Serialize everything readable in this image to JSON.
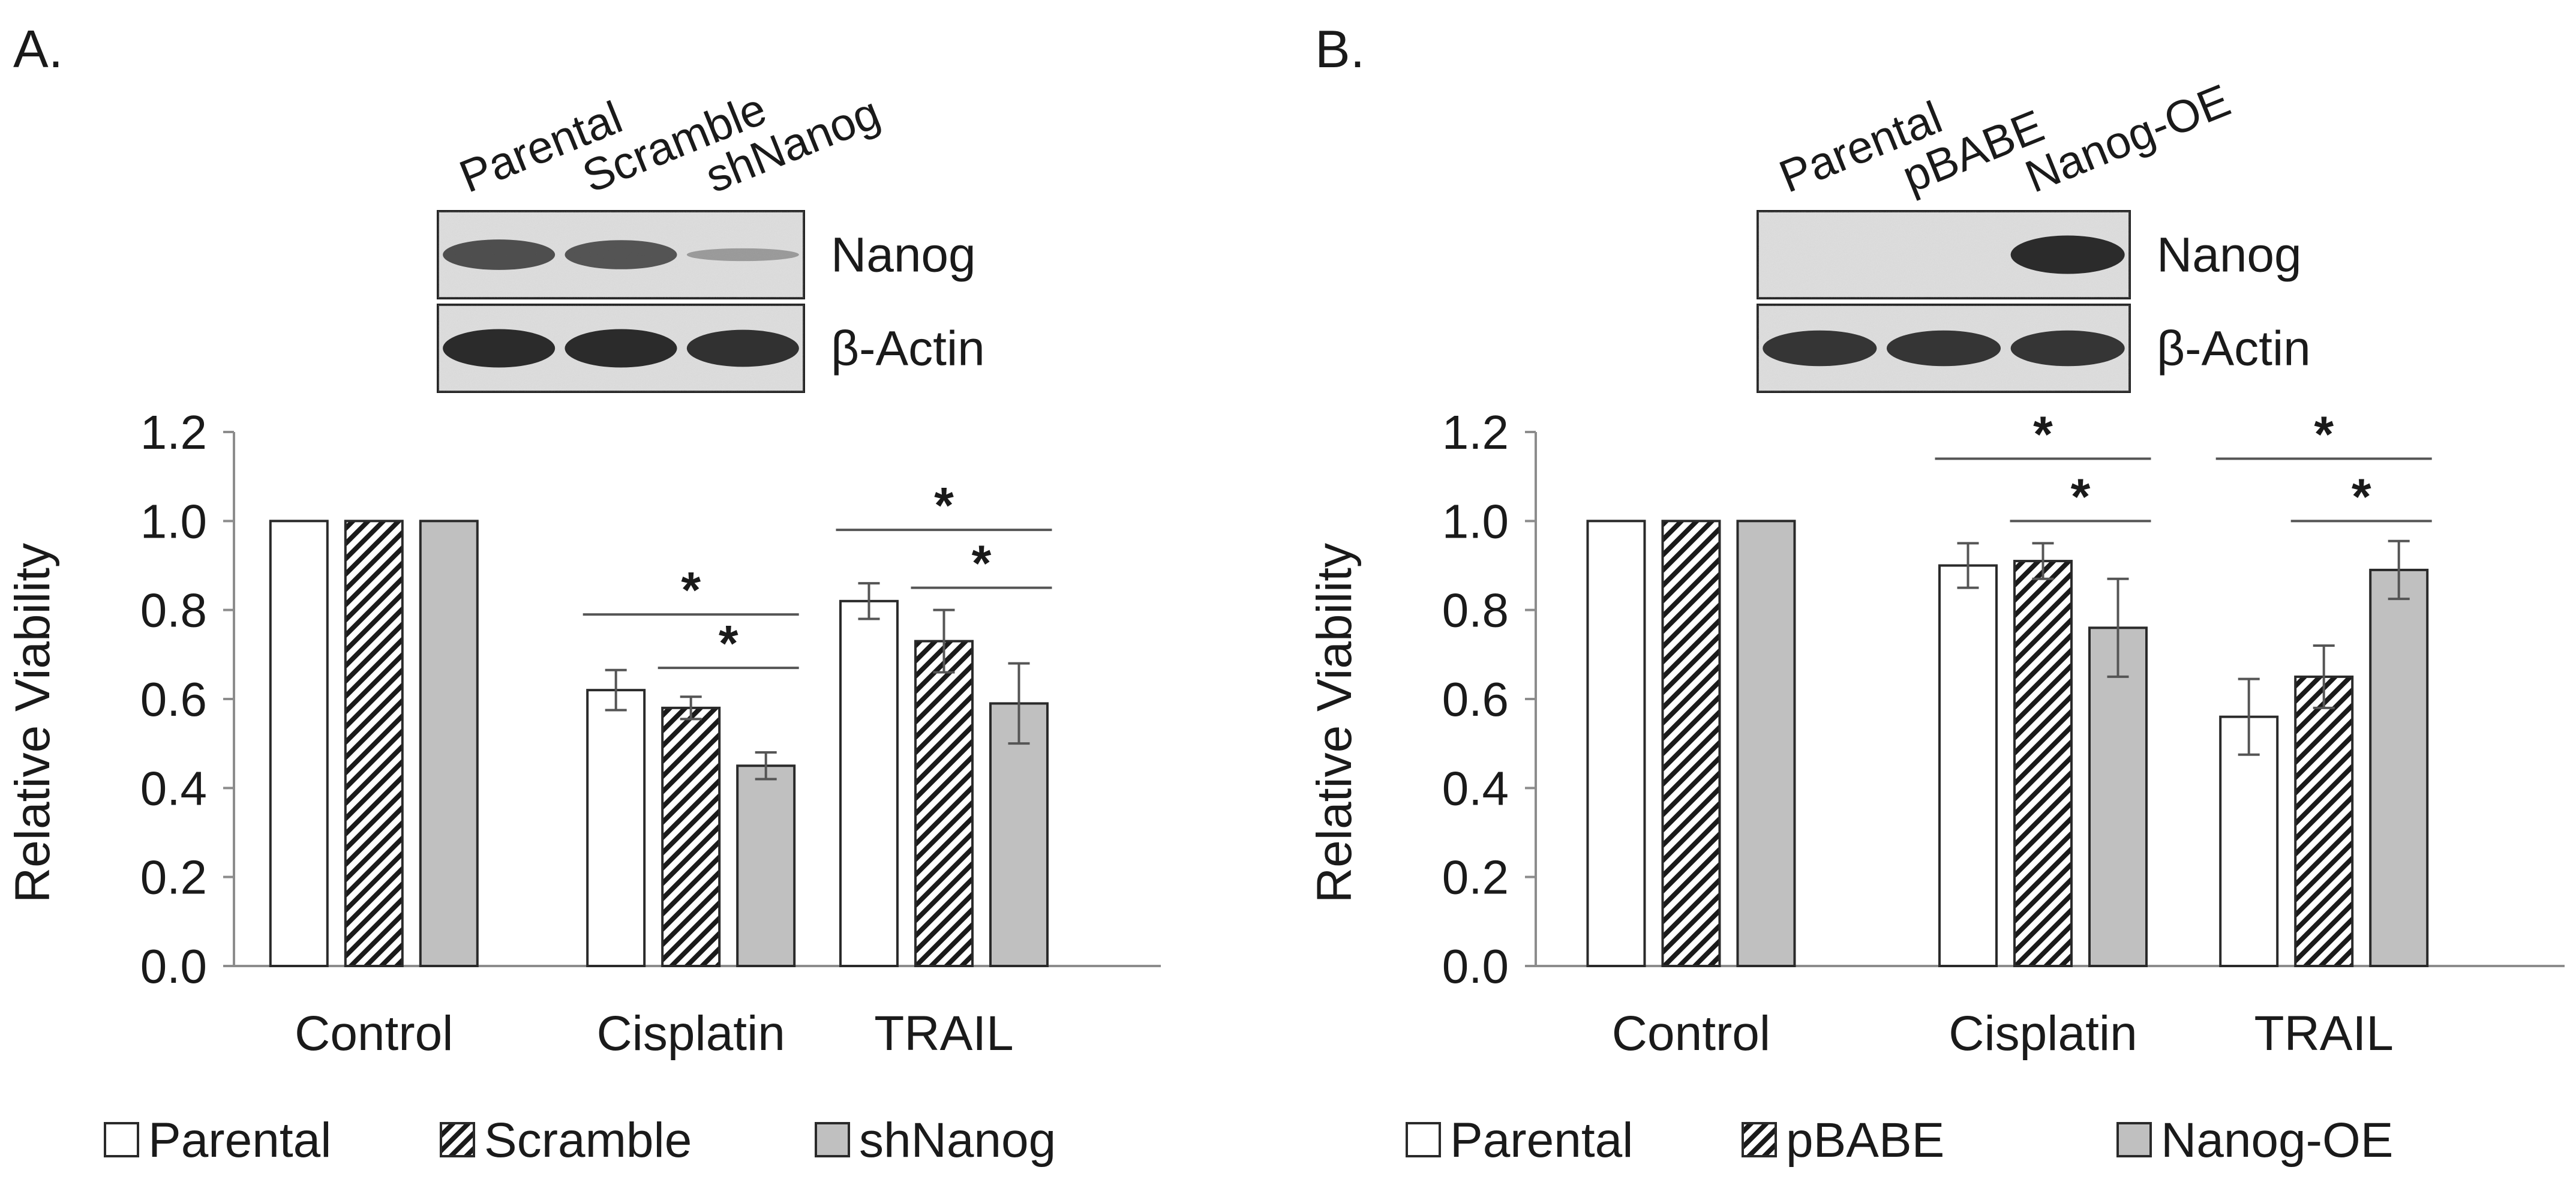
{
  "colors": {
    "parental_fill": "#ffffff",
    "hatch_fill": "#ffffff",
    "hatch_line": "#1a1a1a",
    "gray_fill": "#c0c0c0",
    "axis": "#8c8c8c",
    "text": "#1a1a1a",
    "blot_bg": "#e2e2e2",
    "band": "#2b2b2b"
  },
  "chart_data": [
    {
      "panel_label": "A.",
      "type": "bar",
      "title": "",
      "xlabel": "",
      "ylabel": "Relative Viability",
      "ylim": [
        0,
        1.2
      ],
      "yticks": [
        "0.0",
        "0.2",
        "0.4",
        "0.6",
        "0.8",
        "1.0",
        "1.2"
      ],
      "categories": [
        "Control",
        "Cisplatin",
        "TRAIL"
      ],
      "series": [
        {
          "name": "Parental",
          "pattern": "white",
          "values": [
            1.0,
            0.62,
            0.82
          ],
          "errors": [
            0,
            0.045,
            0.04
          ]
        },
        {
          "name": "Scramble",
          "pattern": "hatch",
          "values": [
            1.0,
            0.58,
            0.73
          ],
          "errors": [
            0,
            0.025,
            0.07
          ]
        },
        {
          "name": "shNanog",
          "pattern": "gray",
          "values": [
            1.0,
            0.45,
            0.59
          ],
          "errors": [
            0,
            0.03,
            0.09
          ]
        }
      ],
      "significance": [
        {
          "label": "*",
          "category": "Cisplatin",
          "from_series": 0,
          "to_series": 2,
          "y": 0.79
        },
        {
          "label": "*",
          "category": "Cisplatin",
          "from_series": 1,
          "to_series": 2,
          "y": 0.67
        },
        {
          "label": "*",
          "category": "TRAIL",
          "from_series": 0,
          "to_series": 2,
          "y": 0.98
        },
        {
          "label": "*",
          "category": "TRAIL",
          "from_series": 1,
          "to_series": 2,
          "y": 0.85
        }
      ],
      "legend": [
        "Parental",
        "Scramble",
        "shNanog"
      ],
      "legend_placement": "bottom",
      "blot": {
        "lanes": [
          "Parental",
          "Scramble",
          "shNanog"
        ],
        "rows": [
          {
            "label": "Nanog",
            "intensities": [
              0.7,
              0.65,
              0.03
            ]
          },
          {
            "label": "β-Actin",
            "intensities": [
              1.0,
              1.0,
              0.95
            ]
          }
        ]
      }
    },
    {
      "panel_label": "B.",
      "type": "bar",
      "title": "",
      "xlabel": "",
      "ylabel": "Relative Viability",
      "ylim": [
        0,
        1.2
      ],
      "yticks": [
        "0.0",
        "0.2",
        "0.4",
        "0.6",
        "0.8",
        "1.0",
        "1.2"
      ],
      "categories": [
        "Control",
        "Cisplatin",
        "TRAIL"
      ],
      "series": [
        {
          "name": "Parental",
          "pattern": "white",
          "values": [
            1.0,
            0.9,
            0.56
          ],
          "errors": [
            0,
            0.05,
            0.085
          ]
        },
        {
          "name": "pBABE",
          "pattern": "hatch",
          "values": [
            1.0,
            0.91,
            0.65
          ],
          "errors": [
            0,
            0.04,
            0.07
          ]
        },
        {
          "name": "Nanog-OE",
          "pattern": "gray",
          "values": [
            1.0,
            0.76,
            0.89
          ],
          "errors": [
            0,
            0.11,
            0.065
          ]
        }
      ],
      "significance": [
        {
          "label": "*",
          "category": "Cisplatin",
          "from_series": 0,
          "to_series": 2,
          "y": 1.14
        },
        {
          "label": "*",
          "category": "Cisplatin",
          "from_series": 1,
          "to_series": 2,
          "y": 1.0
        },
        {
          "label": "*",
          "category": "TRAIL",
          "from_series": 0,
          "to_series": 2,
          "y": 1.14
        },
        {
          "label": "*",
          "category": "TRAIL",
          "from_series": 1,
          "to_series": 2,
          "y": 1.0
        }
      ],
      "legend": [
        "Parental",
        "pBABE",
        "Nanog-OE"
      ],
      "legend_placement": "bottom",
      "blot": {
        "lanes": [
          "Parental",
          "pBABE",
          "Nanog-OE"
        ],
        "rows": [
          {
            "label": "Nanog",
            "intensities": [
              0,
              0,
              1.0
            ]
          },
          {
            "label": "β-Actin",
            "intensities": [
              0.9,
              0.9,
              0.9
            ]
          }
        ]
      }
    }
  ]
}
